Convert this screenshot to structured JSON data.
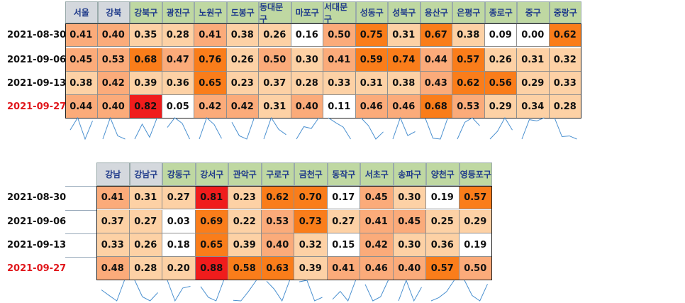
{
  "chart_data": [
    {
      "type": "table",
      "dates": [
        "2021-08-30",
        "2021-09-06",
        "2021-09-13",
        "2021-09-27"
      ],
      "highlight_date": "2021-09-27",
      "columns": [
        "서울",
        "강북",
        "강북구",
        "광진구",
        "노원구",
        "도봉구",
        "동대문구",
        "마포구",
        "서대문구",
        "성동구",
        "성북구",
        "용산구",
        "은평구",
        "종로구",
        "중구",
        "중랑구"
      ],
      "values": [
        [
          0.41,
          0.4,
          0.35,
          0.28,
          0.41,
          0.38,
          0.26,
          0.16,
          0.5,
          0.75,
          0.31,
          0.67,
          0.38,
          0.09,
          0.0,
          0.62
        ],
        [
          0.45,
          0.53,
          0.68,
          0.47,
          0.76,
          0.26,
          0.5,
          0.3,
          0.41,
          0.59,
          0.74,
          0.44,
          0.57,
          0.26,
          0.31,
          0.32
        ],
        [
          0.38,
          0.42,
          0.39,
          0.36,
          0.65,
          0.23,
          0.37,
          0.28,
          0.33,
          0.31,
          0.38,
          0.43,
          0.62,
          0.56,
          0.29,
          0.33
        ],
        [
          0.44,
          0.4,
          0.82,
          0.05,
          0.42,
          0.42,
          0.31,
          0.4,
          0.11,
          0.46,
          0.46,
          0.68,
          0.53,
          0.29,
          0.34,
          0.28
        ]
      ],
      "labels": [
        [
          "0.41",
          "0.40",
          "0.35",
          "0.28",
          "0.41",
          "0.38",
          "0.26",
          "0.16",
          "0.50",
          "0.75",
          "0.31",
          "0.67",
          "0.38",
          "0.09",
          "0.00",
          "0.62"
        ],
        [
          "0.45",
          "0.53",
          "0.68",
          "0.47",
          "0.76",
          "0.26",
          "0.50",
          "0.30",
          "0.41",
          "0.59",
          "0.74",
          "0.44",
          "0.57",
          "0.26",
          "0.31",
          "0.32"
        ],
        [
          "0.38",
          "0.42",
          "0.39",
          "0.36",
          "0.65",
          "0.23",
          "0.37",
          "0.28",
          "0.33",
          "0.31",
          "0.38",
          "0.43",
          "0.62",
          "0.56",
          "0.29",
          "0.33"
        ],
        [
          "0.44",
          "0.40",
          "0.82",
          "0.05",
          "0.42",
          "0.42",
          "0.31",
          "0.40",
          "0.11",
          "0.46",
          "0.46",
          "0.68",
          "0.53",
          "0.29",
          "0.34",
          "0.28"
        ]
      ]
    },
    {
      "type": "table",
      "dates": [
        "2021-08-30",
        "2021-09-06",
        "2021-09-13",
        "2021-09-27"
      ],
      "highlight_date": "2021-09-27",
      "columns": [
        "강남",
        "강남구",
        "강동구",
        "강서구",
        "관악구",
        "구로구",
        "금천구",
        "동작구",
        "서초구",
        "송파구",
        "양천구",
        "영등포구"
      ],
      "values": [
        [
          0.41,
          0.31,
          0.27,
          0.81,
          0.23,
          0.62,
          0.7,
          0.17,
          0.45,
          0.3,
          0.19,
          0.57
        ],
        [
          0.37,
          0.27,
          0.03,
          0.69,
          0.22,
          0.53,
          0.73,
          0.27,
          0.41,
          0.45,
          0.25,
          0.29
        ],
        [
          0.33,
          0.26,
          0.18,
          0.65,
          0.39,
          0.4,
          0.32,
          0.15,
          0.42,
          0.3,
          0.36,
          0.19
        ],
        [
          0.48,
          0.28,
          0.2,
          0.88,
          0.58,
          0.63,
          0.39,
          0.41,
          0.46,
          0.4,
          0.57,
          0.5
        ]
      ],
      "labels": [
        [
          "0.41",
          "0.31",
          "0.27",
          "0.81",
          "0.23",
          "0.62",
          "0.70",
          "0.17",
          "0.45",
          "0.30",
          "0.19",
          "0.57"
        ],
        [
          "0.37",
          "0.27",
          "0.03",
          "0.69",
          "0.22",
          "0.53",
          "0.73",
          "0.27",
          "0.41",
          "0.45",
          "0.25",
          "0.29"
        ],
        [
          "0.33",
          "0.26",
          "0.18",
          "0.65",
          "0.39",
          "0.40",
          "0.32",
          "0.15",
          "0.42",
          "0.30",
          "0.36",
          "0.19"
        ],
        [
          "0.48",
          "0.28",
          "0.20",
          "0.88",
          "0.58",
          "0.63",
          "0.39",
          "0.41",
          "0.46",
          "0.40",
          "0.57",
          "0.50"
        ]
      ]
    }
  ],
  "colors": {
    "header_gray": "#d4d8dd",
    "header_green": "#bfd8a2",
    "header_text": "#1f3a8a",
    "highlight_date": "#e0161b",
    "sparkline": "#4a90d0"
  }
}
